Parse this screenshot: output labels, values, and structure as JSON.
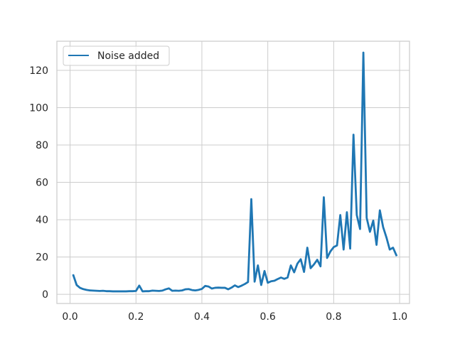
{
  "chart_data": {
    "type": "line",
    "title": "",
    "xlabel": "",
    "ylabel": "",
    "xlim": [
      -0.04,
      1.03
    ],
    "ylim": [
      -4.9,
      135.6
    ],
    "grid": true,
    "legend_placement": "top-left",
    "x_ticks": [
      0.0,
      0.2,
      0.4,
      0.6,
      0.8,
      1.0
    ],
    "x_tick_labels": [
      "0.0",
      "0.2",
      "0.4",
      "0.6",
      "0.8",
      "1.0"
    ],
    "y_ticks": [
      0,
      20,
      40,
      60,
      80,
      100,
      120
    ],
    "y_tick_labels": [
      "0",
      "20",
      "40",
      "60",
      "80",
      "100",
      "120"
    ],
    "series": [
      {
        "name": "Noise added",
        "color": "#1f77b4",
        "x": [
          0.01,
          0.02,
          0.03,
          0.04,
          0.05,
          0.06,
          0.07,
          0.08,
          0.09,
          0.1,
          0.11,
          0.12,
          0.13,
          0.14,
          0.15,
          0.16,
          0.17,
          0.18,
          0.19,
          0.2,
          0.21,
          0.22,
          0.23,
          0.24,
          0.25,
          0.26,
          0.27,
          0.28,
          0.29,
          0.3,
          0.31,
          0.32,
          0.33,
          0.34,
          0.35,
          0.36,
          0.37,
          0.38,
          0.39,
          0.4,
          0.41,
          0.42,
          0.43,
          0.44,
          0.45,
          0.46,
          0.47,
          0.48,
          0.49,
          0.5,
          0.51,
          0.52,
          0.53,
          0.54,
          0.55,
          0.56,
          0.57,
          0.58,
          0.59,
          0.6,
          0.61,
          0.62,
          0.63,
          0.64,
          0.65,
          0.66,
          0.67,
          0.68,
          0.69,
          0.7,
          0.71,
          0.72,
          0.73,
          0.74,
          0.75,
          0.76,
          0.77,
          0.78,
          0.79,
          0.8,
          0.81,
          0.82,
          0.83,
          0.84,
          0.85,
          0.86,
          0.87,
          0.88,
          0.89,
          0.9,
          0.91,
          0.92,
          0.93,
          0.94,
          0.95,
          0.96,
          0.97,
          0.98,
          0.99
        ],
        "y": [
          10.2,
          5.0,
          3.5,
          2.8,
          2.4,
          2.1,
          2.0,
          1.9,
          1.8,
          1.9,
          1.7,
          1.7,
          1.6,
          1.6,
          1.6,
          1.6,
          1.6,
          1.7,
          1.7,
          1.8,
          4.7,
          1.6,
          1.7,
          1.7,
          2.0,
          1.9,
          1.8,
          2.0,
          2.7,
          3.2,
          1.9,
          2.0,
          1.9,
          2.1,
          2.7,
          2.8,
          2.3,
          2.1,
          2.4,
          2.9,
          4.5,
          4.2,
          3.1,
          3.5,
          3.6,
          3.5,
          3.5,
          2.7,
          3.6,
          4.8,
          3.9,
          4.6,
          5.5,
          6.6,
          51.0,
          6.8,
          15.5,
          5.0,
          12.5,
          6.2,
          7.0,
          7.3,
          8.2,
          9.0,
          8.3,
          9.0,
          15.5,
          11.8,
          16.5,
          18.8,
          12.0,
          25.0,
          14.0,
          16.0,
          18.5,
          15.0,
          52.0,
          19.5,
          23.0,
          25.3,
          26.2,
          42.5,
          24.0,
          44.0,
          24.5,
          85.5,
          42.5,
          35.0,
          129.5,
          41.0,
          33.5,
          39.5,
          26.5,
          45.0,
          36.0,
          30.5,
          24.0,
          25.0,
          21.0
        ]
      }
    ]
  }
}
